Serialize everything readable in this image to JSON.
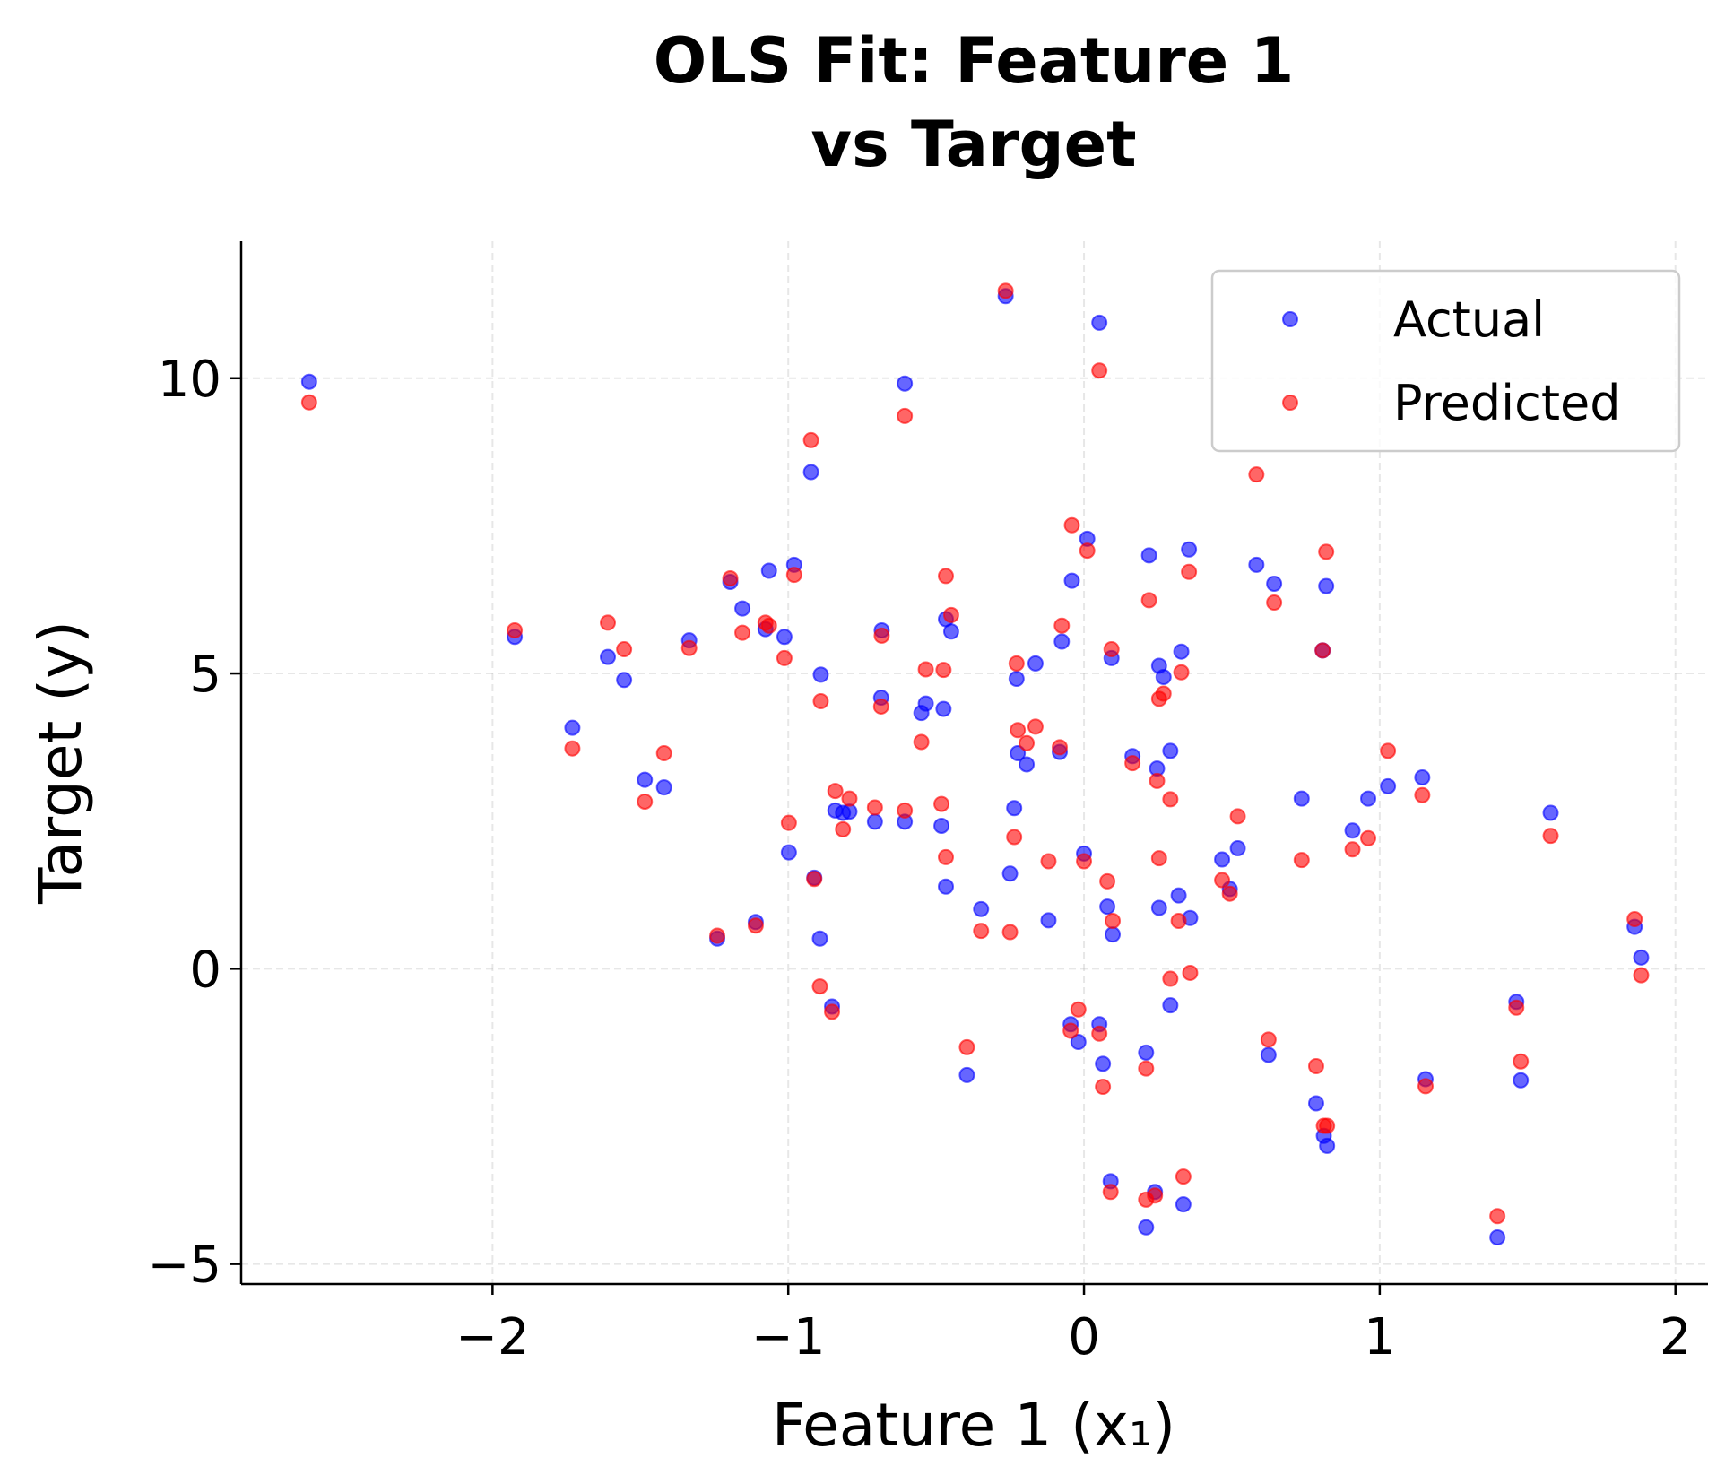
{
  "chart_data": {
    "type": "scatter",
    "title": [
      "OLS Fit: Feature 1",
      "vs Target"
    ],
    "xlabel": "Feature 1 (x₁)",
    "ylabel": "Target (y)",
    "xlim": [
      -2.85,
      2.11
    ],
    "ylim": [
      -5.34,
      12.32
    ],
    "xticks": [
      -2,
      -1,
      0,
      1,
      2
    ],
    "xtick_labels": [
      "−2",
      "−1",
      "0",
      "1",
      "2"
    ],
    "yticks": [
      -5,
      0,
      5,
      10
    ],
    "ytick_labels": [
      "−5",
      "0",
      "5",
      "10"
    ],
    "grid": true,
    "legend_position": "top-right",
    "series": [
      {
        "name": "Actual",
        "color": "#0000ff"
      },
      {
        "name": "Predicted",
        "color": "#ff0000"
      }
    ],
    "x": [
      -2.62,
      -1.925,
      -1.73,
      -1.61,
      -1.555,
      -1.485,
      -1.42,
      -1.335,
      -1.24,
      -1.196,
      -1.155,
      -1.11,
      -1.077,
      -1.065,
      -1.013,
      -0.998,
      -0.98,
      -0.923,
      -0.912,
      -0.893,
      -0.89,
      -0.852,
      -0.841,
      -0.815,
      -0.793,
      -0.707,
      -0.684,
      -0.686,
      -0.606,
      -0.606,
      -0.55,
      -0.535,
      -0.482,
      -0.475,
      -0.467,
      -0.467,
      -0.449,
      -0.396,
      -0.348,
      -0.265,
      -0.25,
      -0.236,
      -0.228,
      -0.224,
      -0.194,
      -0.164,
      -0.12,
      -0.082,
      -0.075,
      -0.045,
      -0.041,
      -0.019,
      0.0,
      0.011,
      0.052,
      0.052,
      0.064,
      0.079,
      0.09,
      0.093,
      0.097,
      0.164,
      0.21,
      0.21,
      0.22,
      0.24,
      0.247,
      0.254,
      0.254,
      0.269,
      0.292,
      0.292,
      0.32,
      0.329,
      0.336,
      0.355,
      0.359,
      0.467,
      0.493,
      0.52,
      0.583,
      0.624,
      0.643,
      0.736,
      0.785,
      0.807,
      0.811,
      0.819,
      0.822,
      0.908,
      0.961,
      1.028,
      1.144,
      1.155,
      1.398,
      1.462,
      1.477,
      1.578,
      1.862,
      1.884
    ],
    "actual": [
      9.94,
      5.62,
      4.08,
      5.28,
      4.89,
      3.2,
      3.07,
      5.56,
      0.51,
      6.55,
      6.1,
      0.79,
      5.75,
      6.74,
      5.62,
      1.97,
      6.84,
      8.41,
      1.54,
      0.51,
      4.98,
      -0.64,
      2.68,
      2.64,
      2.66,
      2.49,
      5.73,
      4.59,
      9.91,
      2.49,
      4.33,
      4.49,
      2.42,
      4.4,
      5.92,
      1.39,
      5.71,
      -1.8,
      1.01,
      11.39,
      1.61,
      2.72,
      4.91,
      3.65,
      3.46,
      5.17,
      0.82,
      3.67,
      5.54,
      -0.94,
      6.57,
      -1.24,
      1.95,
      7.28,
      10.94,
      -0.94,
      -1.61,
      1.05,
      -3.6,
      5.26,
      0.58,
      3.6,
      -4.38,
      -1.42,
      7.0,
      -3.78,
      3.39,
      5.13,
      1.03,
      4.94,
      3.69,
      -0.62,
      1.24,
      5.37,
      -3.99,
      7.1,
      0.86,
      1.85,
      1.35,
      2.04,
      6.84,
      -1.46,
      6.52,
      2.88,
      -2.28,
      5.39,
      -2.83,
      6.48,
      -3.0,
      2.34,
      2.88,
      3.09,
      3.24,
      -1.87,
      -4.55,
      -0.56,
      -1.89,
      2.64,
      0.71,
      0.19
    ],
    "predicted": [
      9.59,
      5.73,
      3.73,
      5.86,
      5.41,
      2.83,
      3.65,
      5.43,
      0.56,
      6.61,
      5.69,
      0.73,
      5.86,
      5.81,
      5.26,
      2.47,
      6.67,
      8.95,
      1.52,
      -0.3,
      4.53,
      -0.73,
      3.01,
      2.36,
      2.88,
      2.73,
      5.64,
      4.44,
      9.36,
      2.68,
      3.84,
      5.07,
      2.79,
      5.06,
      6.65,
      1.89,
      5.99,
      -1.33,
      0.64,
      11.48,
      0.62,
      2.23,
      5.17,
      4.04,
      3.82,
      4.1,
      1.82,
      3.75,
      5.81,
      -1.05,
      7.51,
      -0.69,
      1.82,
      7.08,
      10.13,
      -1.1,
      -2.0,
      1.48,
      -3.78,
      5.41,
      0.81,
      3.48,
      -3.91,
      -1.69,
      6.24,
      -3.84,
      3.18,
      4.57,
      1.87,
      4.66,
      2.87,
      -0.17,
      0.81,
      5.02,
      -3.52,
      6.72,
      -0.07,
      1.5,
      1.27,
      2.58,
      8.37,
      -1.2,
      6.2,
      1.84,
      -1.65,
      5.39,
      -2.66,
      7.06,
      -2.66,
      2.02,
      2.21,
      3.69,
      2.94,
      -1.99,
      -4.19,
      -0.66,
      -1.57,
      2.25,
      0.84,
      -0.11
    ]
  }
}
